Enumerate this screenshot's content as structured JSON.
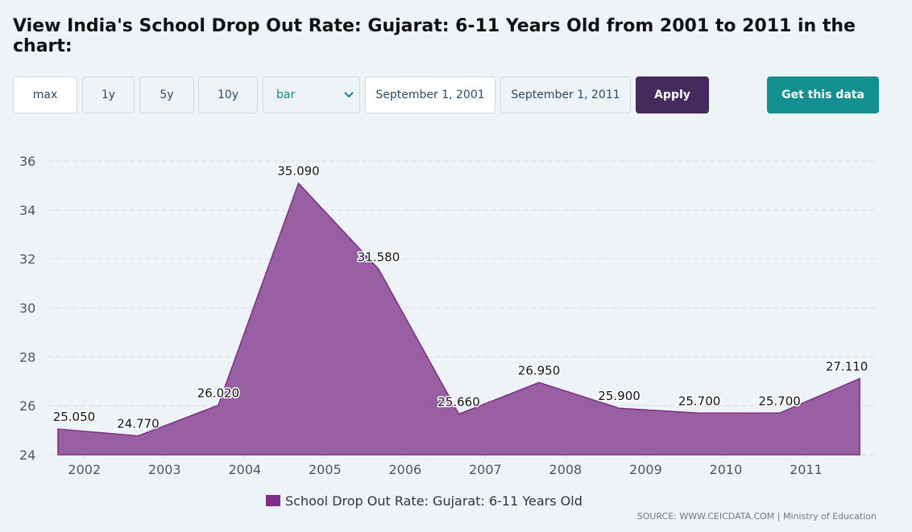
{
  "page": {
    "title": "View India's School Drop Out Rate: Gujarat: 6-11 Years Old from 2001 to 2011 in the chart:",
    "controls": {
      "ranges": [
        "max",
        "1y",
        "5y",
        "10y"
      ],
      "chart_type": "bar",
      "start": "September 1, 2001",
      "end": "September 1, 2011",
      "apply": "Apply",
      "get_data": "Get this data"
    },
    "source": "SOURCE: WWW.CEICDATA.COM | Ministry of Education"
  },
  "chart_data": {
    "type": "area",
    "x": [
      2001.67,
      2002.67,
      2003.67,
      2004.67,
      2005.67,
      2006.67,
      2007.67,
      2008.67,
      2009.67,
      2010.67,
      2011.67
    ],
    "series": [
      {
        "name": "School Drop Out Rate: Gujarat: 6-11 Years Old",
        "color": "#7b2f87",
        "values": [
          25.05,
          24.77,
          26.02,
          35.09,
          31.58,
          25.66,
          26.95,
          25.9,
          25.7,
          25.7,
          27.11
        ],
        "value_labels": [
          "25.050",
          "24.770",
          "26.020",
          "35.090",
          "31.580",
          "25.660",
          "26.950",
          "25.900",
          "25.700",
          "25.700",
          "27.110"
        ]
      }
    ],
    "xlim": [
      2001.55,
      2011.88
    ],
    "xticks": [
      2002,
      2003,
      2004,
      2005,
      2006,
      2007,
      2008,
      2009,
      2010,
      2011
    ],
    "ylim": [
      24,
      36
    ],
    "yticks": [
      24,
      26,
      28,
      30,
      32,
      34,
      36
    ],
    "grid": true
  }
}
